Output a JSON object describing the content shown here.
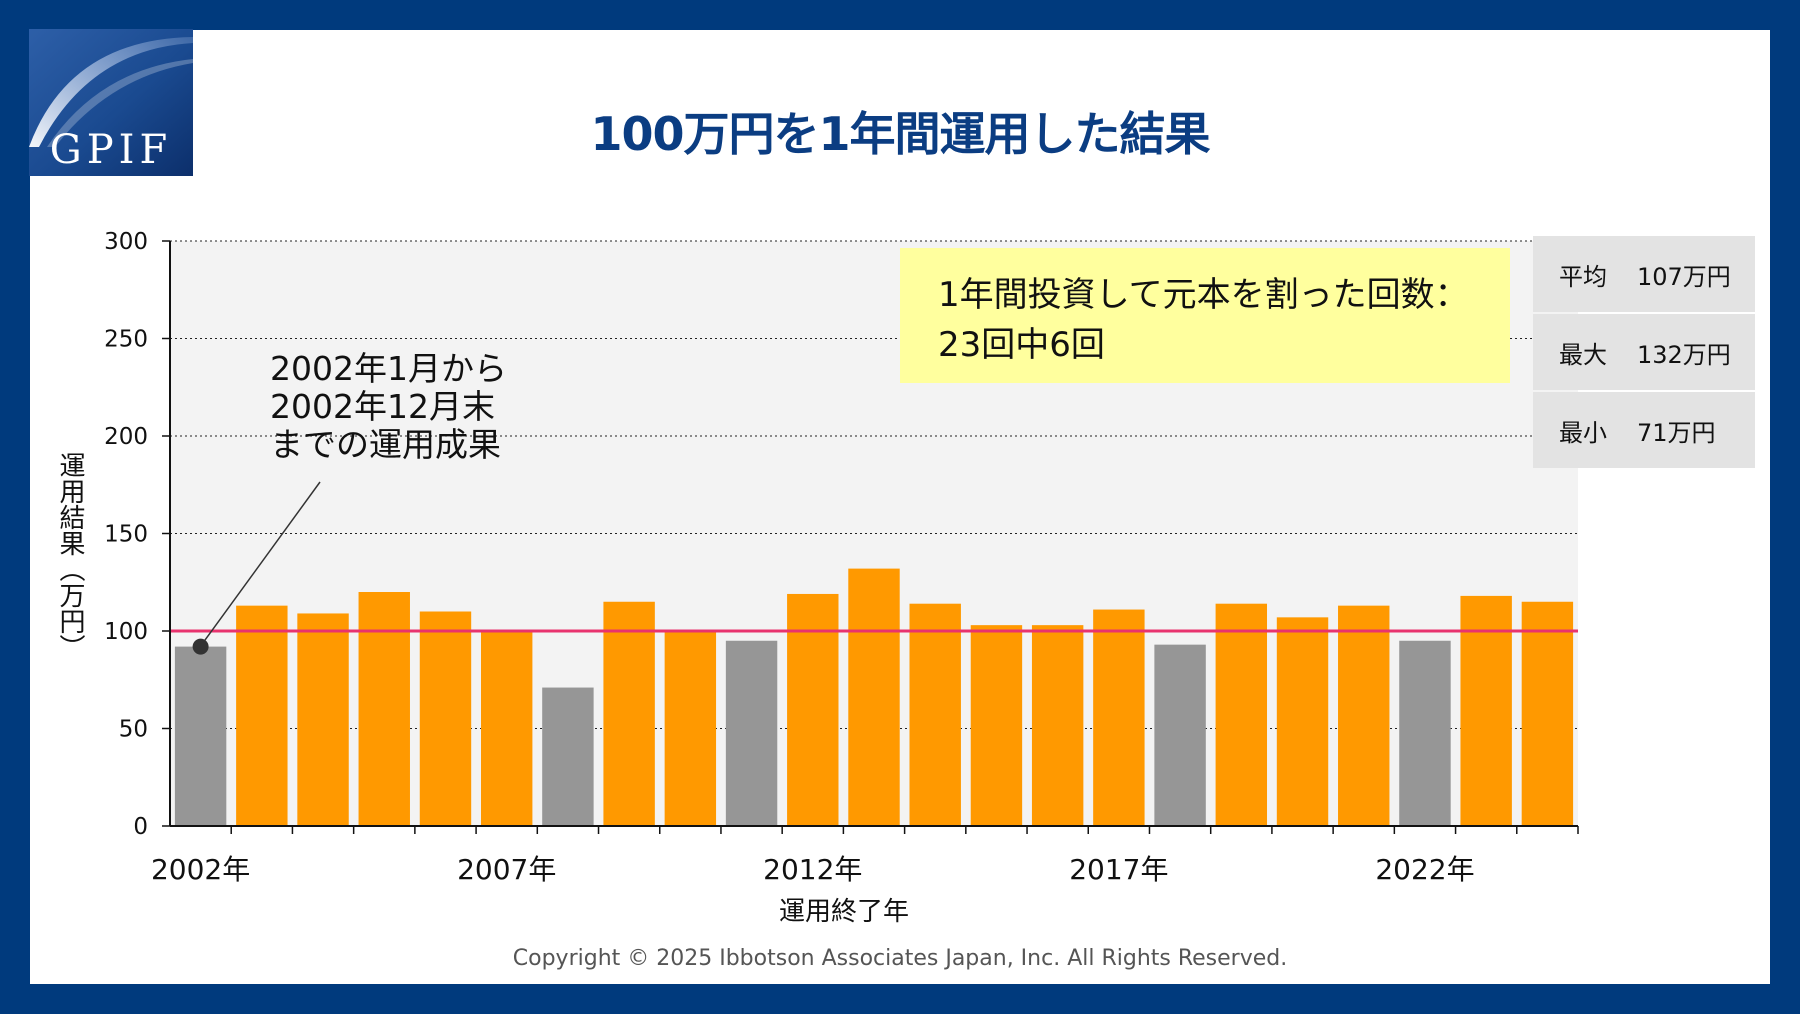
{
  "title": "100万円を1年間運用した結果",
  "logo_text": "GPIF",
  "chart_data": {
    "type": "bar",
    "categories": [
      "2002年",
      "2003年",
      "2004年",
      "2005年",
      "2006年",
      "2007年",
      "2008年",
      "2009年",
      "2010年",
      "2011年",
      "2012年",
      "2013年",
      "2014年",
      "2015年",
      "2016年",
      "2017年",
      "2018年",
      "2019年",
      "2020年",
      "2021年",
      "2022年",
      "2023年",
      "2024年"
    ],
    "tick_labels": [
      "2002年",
      "2007年",
      "2012年",
      "2017年",
      "2022年"
    ],
    "values": [
      92,
      113,
      109,
      120,
      110,
      100,
      71,
      115,
      100,
      95,
      119,
      132,
      114,
      103,
      103,
      111,
      93,
      114,
      107,
      113,
      95,
      118,
      115
    ],
    "ylim": [
      0,
      300
    ],
    "yticks": [
      0,
      50,
      100,
      150,
      200,
      250,
      300
    ],
    "reference_line": 100,
    "xlabel": "運用終了年",
    "ylabel": "運用結果（万円）",
    "grid": "horizontal dotted",
    "colors": {
      "gain": "#ff9900",
      "loss": "#969696",
      "reference": "#e8336e",
      "band": "#f3f3f3"
    }
  },
  "callout": {
    "line1": "1年間投資して元本を割った回数：",
    "line2": "23回中6回"
  },
  "stats": [
    {
      "label": "平均",
      "value": "107万円"
    },
    {
      "label": "最大",
      "value": "132万円"
    },
    {
      "label": "最小",
      "value": "71万円"
    }
  ],
  "annotation": {
    "line1": "2002年1月から",
    "line2": "2002年12月末",
    "line3": "までの運用成果"
  },
  "copyright": "Copyright © 2025 Ibbotson Associates Japan, Inc. All Rights Reserved."
}
